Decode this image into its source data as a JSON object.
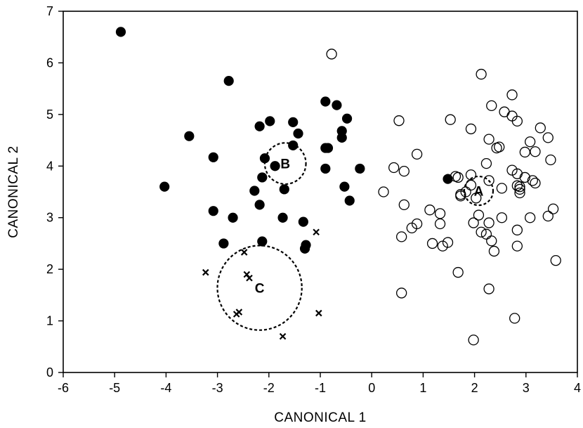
{
  "chart_data": {
    "type": "scatter",
    "title": "",
    "xlabel": "CANONICAL 1",
    "ylabel": "CANONICAL 2",
    "xlim": [
      -6,
      4
    ],
    "ylim": [
      0,
      7
    ],
    "xticks": [
      -6,
      -5,
      -4,
      -3,
      -2,
      -1,
      0,
      1,
      2,
      3,
      4
    ],
    "yticks": [
      0,
      1,
      2,
      3,
      4,
      5,
      6,
      7
    ],
    "grid": false,
    "legend": "none",
    "series": [
      {
        "marker": "filled-circle",
        "points": [
          [
            -4.88,
            6.6
          ],
          [
            -2.78,
            5.65
          ],
          [
            -3.55,
            4.58
          ],
          [
            -3.08,
            4.17
          ],
          [
            -4.03,
            3.6
          ],
          [
            -3.08,
            3.13
          ],
          [
            -2.88,
            2.5
          ],
          [
            -2.7,
            3.0
          ],
          [
            -2.28,
            3.52
          ],
          [
            -2.18,
            3.25
          ],
          [
            -2.18,
            4.77
          ],
          [
            -1.98,
            4.87
          ],
          [
            -2.08,
            4.15
          ],
          [
            -1.88,
            4.0
          ],
          [
            -2.13,
            3.78
          ],
          [
            -2.13,
            2.54
          ],
          [
            -1.7,
            3.55
          ],
          [
            -1.73,
            3.0
          ],
          [
            -1.53,
            4.85
          ],
          [
            -1.53,
            4.4
          ],
          [
            -1.43,
            4.63
          ],
          [
            -1.33,
            2.92
          ],
          [
            -1.28,
            2.47
          ],
          [
            -1.3,
            2.4
          ],
          [
            -0.9,
            5.25
          ],
          [
            -0.68,
            5.18
          ],
          [
            -0.9,
            4.35
          ],
          [
            -0.85,
            4.35
          ],
          [
            -0.9,
            3.95
          ],
          [
            -0.58,
            4.68
          ],
          [
            -0.58,
            4.55
          ],
          [
            -0.48,
            4.92
          ],
          [
            -0.53,
            3.6
          ],
          [
            -0.43,
            3.33
          ],
          [
            -0.23,
            3.95
          ],
          [
            1.48,
            3.75
          ]
        ]
      },
      {
        "marker": "open-circle",
        "points": [
          [
            -0.78,
            6.17
          ],
          [
            0.53,
            4.88
          ],
          [
            0.43,
            3.97
          ],
          [
            0.63,
            3.9
          ],
          [
            0.23,
            3.5
          ],
          [
            0.63,
            3.25
          ],
          [
            0.58,
            2.63
          ],
          [
            0.78,
            2.8
          ],
          [
            0.88,
            2.88
          ],
          [
            0.88,
            4.23
          ],
          [
            0.58,
            1.54
          ],
          [
            1.13,
            3.15
          ],
          [
            1.33,
            3.08
          ],
          [
            1.18,
            2.5
          ],
          [
            1.33,
            2.88
          ],
          [
            1.38,
            2.45
          ],
          [
            1.48,
            2.52
          ],
          [
            1.53,
            4.9
          ],
          [
            1.63,
            3.8
          ],
          [
            1.68,
            3.78
          ],
          [
            1.73,
            3.45
          ],
          [
            1.68,
            1.94
          ],
          [
            1.83,
            3.5
          ],
          [
            1.93,
            4.72
          ],
          [
            1.93,
            3.83
          ],
          [
            1.93,
            3.63
          ],
          [
            2.03,
            3.38
          ],
          [
            2.08,
            3.05
          ],
          [
            1.98,
            2.9
          ],
          [
            2.13,
            2.72
          ],
          [
            2.13,
            5.78
          ],
          [
            2.23,
            4.05
          ],
          [
            2.23,
            2.68
          ],
          [
            2.28,
            4.52
          ],
          [
            2.33,
            5.17
          ],
          [
            2.28,
            3.72
          ],
          [
            2.28,
            2.9
          ],
          [
            2.33,
            2.55
          ],
          [
            2.28,
            1.62
          ],
          [
            2.38,
            2.35
          ],
          [
            2.43,
            4.35
          ],
          [
            2.48,
            4.37
          ],
          [
            2.53,
            3.0
          ],
          [
            2.53,
            3.57
          ],
          [
            2.58,
            5.05
          ],
          [
            2.73,
            4.97
          ],
          [
            2.73,
            5.38
          ],
          [
            2.83,
            4.87
          ],
          [
            2.73,
            3.92
          ],
          [
            2.83,
            3.85
          ],
          [
            2.83,
            3.62
          ],
          [
            2.88,
            3.55
          ],
          [
            2.88,
            3.48
          ],
          [
            2.98,
            3.78
          ],
          [
            2.98,
            4.27
          ],
          [
            3.08,
            4.47
          ],
          [
            3.08,
            3.0
          ],
          [
            3.13,
            3.72
          ],
          [
            3.18,
            3.67
          ],
          [
            3.18,
            4.28
          ],
          [
            3.28,
            4.74
          ],
          [
            2.83,
            2.76
          ],
          [
            2.83,
            2.45
          ],
          [
            2.78,
            1.05
          ],
          [
            1.98,
            0.63
          ],
          [
            3.43,
            4.55
          ],
          [
            3.48,
            4.12
          ],
          [
            3.43,
            3.03
          ],
          [
            3.53,
            3.17
          ],
          [
            3.58,
            2.17
          ],
          [
            1.73,
            3.42
          ],
          [
            2.88,
            3.6
          ]
        ]
      },
      {
        "marker": "cross",
        "points": [
          [
            -1.08,
            2.72
          ],
          [
            -2.48,
            2.33
          ],
          [
            -3.23,
            1.94
          ],
          [
            -2.43,
            1.9
          ],
          [
            -2.38,
            1.83
          ],
          [
            -2.58,
            1.17
          ],
          [
            -2.63,
            1.13
          ],
          [
            -1.03,
            1.15
          ],
          [
            -1.73,
            0.7
          ]
        ]
      }
    ],
    "annotations": [
      {
        "label": "A",
        "center": [
          2.08,
          3.52
        ],
        "radius": 0.28
      },
      {
        "label": "B",
        "center": [
          -1.68,
          4.05
        ],
        "radius": 0.4
      },
      {
        "label": "C",
        "center": [
          -2.18,
          1.64
        ],
        "radius": 0.82
      }
    ]
  }
}
